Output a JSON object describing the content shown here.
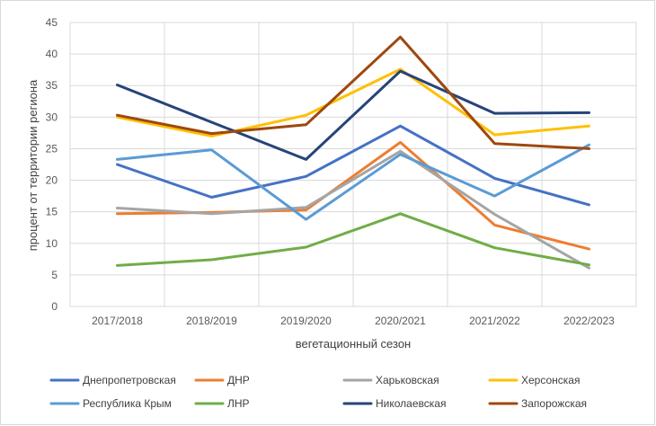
{
  "chart_data": {
    "type": "line",
    "title": "",
    "xlabel": "вегетационный сезон",
    "ylabel": "процент от территории региона",
    "categories": [
      "2017/2018",
      "2018/2019",
      "2019/2020",
      "2020/2021",
      "2021/2022",
      "2022/2023"
    ],
    "ylim": [
      0,
      45
    ],
    "yticks": [
      "0",
      "5",
      "10",
      "15",
      "20",
      "25",
      "30",
      "35",
      "40",
      "45"
    ],
    "grid": true,
    "legend_position": "bottom",
    "series": [
      {
        "name": "Днепропетровская",
        "color": "#4472C4",
        "values": [
          22.5,
          17.3,
          20.6,
          28.6,
          20.3,
          16.1
        ]
      },
      {
        "name": "ДНР",
        "color": "#ED7D31",
        "values": [
          14.7,
          14.9,
          15.3,
          26.0,
          12.9,
          9.1
        ]
      },
      {
        "name": "Харьковская",
        "color": "#A5A5A5",
        "values": [
          15.6,
          14.7,
          15.7,
          24.6,
          14.6,
          6.1
        ]
      },
      {
        "name": "Херсонская",
        "color": "#FFC000",
        "values": [
          30.0,
          27.0,
          30.3,
          37.6,
          27.2,
          28.6
        ]
      },
      {
        "name": "Республика Крым",
        "color": "#5B9BD5",
        "values": [
          23.3,
          24.8,
          13.8,
          24.1,
          17.5,
          25.6
        ]
      },
      {
        "name": "ЛНР",
        "color": "#70AD47",
        "values": [
          6.5,
          7.4,
          9.4,
          14.7,
          9.3,
          6.6
        ]
      },
      {
        "name": "Николаевская",
        "color": "#264478",
        "values": [
          35.1,
          29.2,
          23.3,
          37.3,
          30.6,
          30.7
        ]
      },
      {
        "name": "Запорожская",
        "color": "#9E480E",
        "values": [
          30.3,
          27.4,
          28.8,
          42.7,
          25.8,
          25.0
        ]
      }
    ]
  }
}
